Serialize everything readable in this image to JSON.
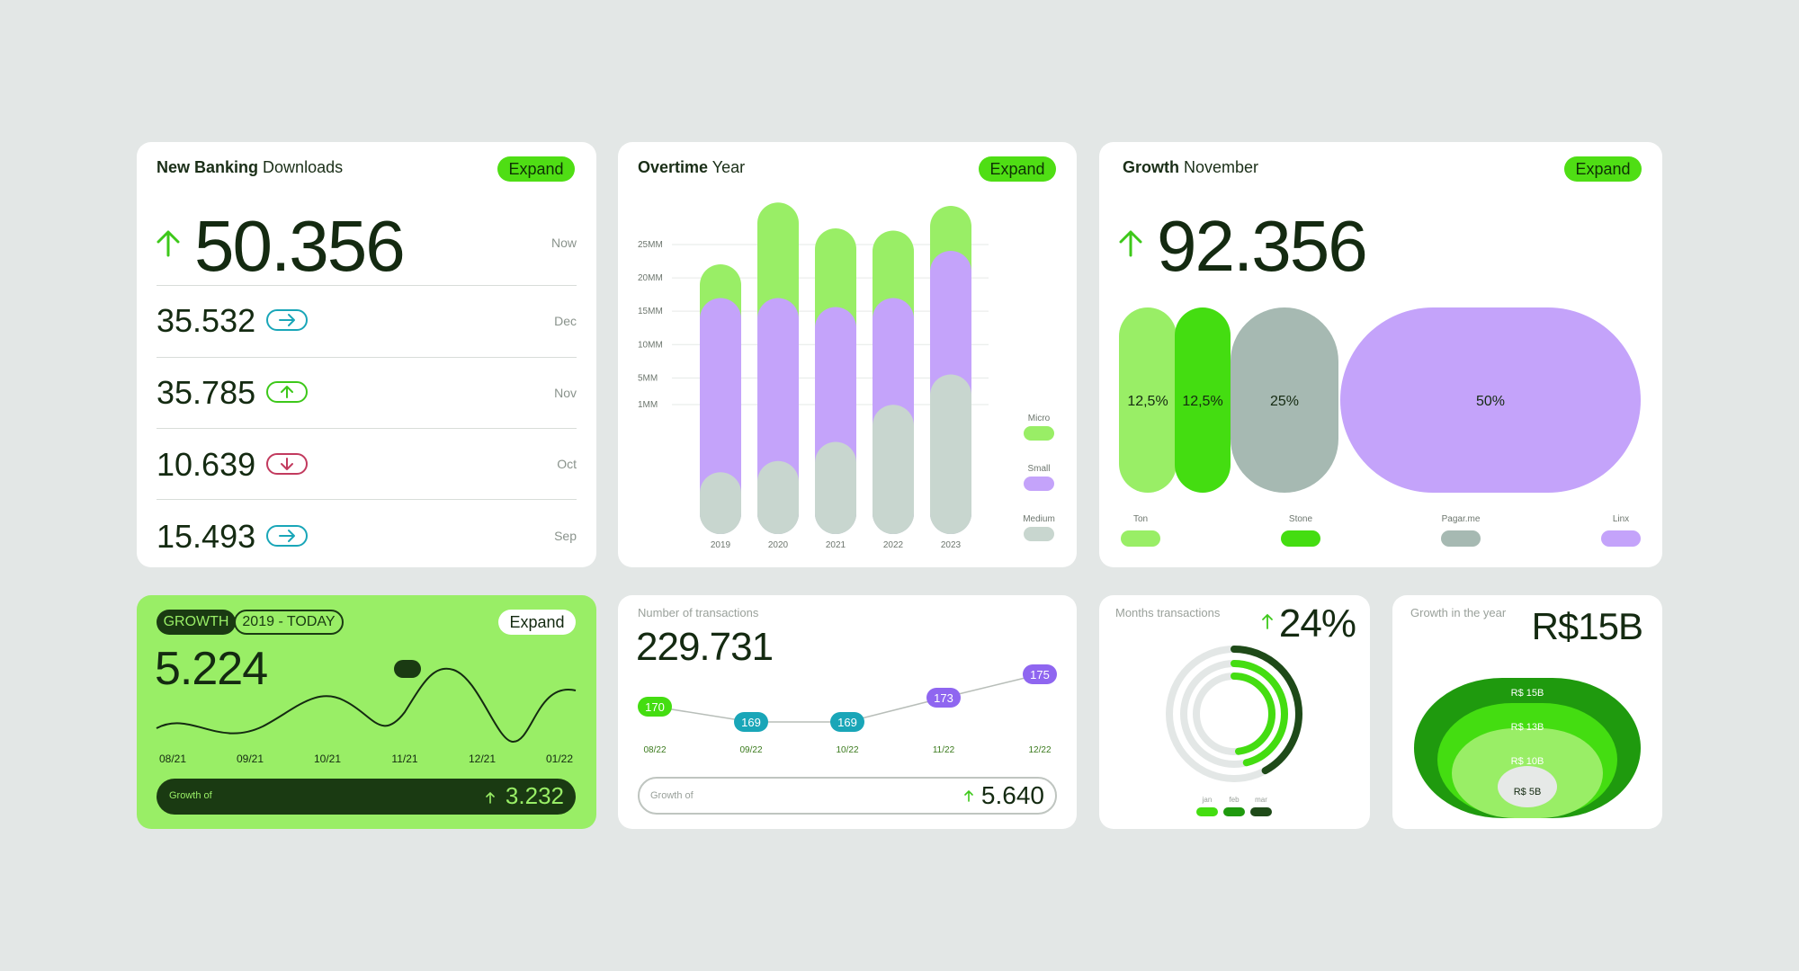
{
  "downloads": {
    "title_bold": "New Banking",
    "title_rest": "Downloads",
    "expand": "Expand",
    "main_value": "50.356",
    "main_label": "Now",
    "rows": [
      {
        "value": "35.532",
        "label": "Dec",
        "dir": "right",
        "color": "#19a6b8"
      },
      {
        "value": "35.785",
        "label": "Nov",
        "dir": "up",
        "color": "#3dc81a"
      },
      {
        "value": "10.639",
        "label": "Oct",
        "dir": "down",
        "color": "#c23a5e"
      },
      {
        "value": "15.493",
        "label": "Sep",
        "dir": "right",
        "color": "#19a6b8"
      }
    ]
  },
  "overtime": {
    "title_bold": "Overtime",
    "title_rest": "Year",
    "expand": "Expand",
    "chart_data": {
      "type": "bar",
      "stacked": true,
      "categories": [
        "2019",
        "2020",
        "2021",
        "2022",
        "2023"
      ],
      "y_ticks": [
        "25MM",
        "20MM",
        "15MM",
        "10MM",
        "5MM",
        "1MM"
      ],
      "series": [
        {
          "name": "Medium",
          "color": "#c8d6cf",
          "values": [
            5.5,
            6.5,
            8.2,
            11.5,
            14.2
          ]
        },
        {
          "name": "Small",
          "color": "#c4a3fa",
          "values": [
            15.5,
            14.5,
            12.0,
            9.5,
            11.0
          ]
        },
        {
          "name": "Micro",
          "color": "#99ee66",
          "values": [
            3.0,
            8.5,
            7.0,
            6.0,
            4.0
          ]
        }
      ]
    }
  },
  "growth_nov": {
    "title_bold": "Growth",
    "title_rest": "November",
    "expand": "Expand",
    "main_value": "92.356",
    "chart_data": {
      "type": "bar",
      "labels": [
        "Ton",
        "Stone",
        "Pagar.me",
        "Linx"
      ],
      "values_text": [
        "12,5%",
        "12,5%",
        "25%",
        "50%"
      ],
      "values": [
        12.5,
        12.5,
        25,
        50
      ],
      "colors": [
        "#99ee66",
        "#44dd11",
        "#a6b9b2",
        "#c4a3fa"
      ]
    }
  },
  "growth_card": {
    "tag1": "GROWTH",
    "tag2": "2019 - TODAY",
    "expand": "Expand",
    "value": "5.224",
    "footer_label": "Growth of",
    "footer_value": "3.232",
    "chart_data": {
      "type": "line",
      "x": [
        "08/21",
        "09/21",
        "10/21",
        "11/21",
        "12/21",
        "01/22"
      ],
      "highlight_index": 3
    }
  },
  "transactions": {
    "title": "Number of transactions",
    "value": "229.731",
    "footer_label": "Growth of",
    "footer_value": "5.640",
    "chart_data": {
      "type": "line",
      "x": [
        "08/22",
        "09/22",
        "10/22",
        "11/22",
        "12/22"
      ],
      "values": [
        170,
        169,
        169,
        173,
        175
      ],
      "colors": [
        "#44dd11",
        "#19a6b8",
        "#19a6b8",
        "#8f66f0",
        "#8f66f0"
      ]
    }
  },
  "months": {
    "title": "Months transactions",
    "value": "24%",
    "chart_data": {
      "type": "pie",
      "labels": [
        "jan",
        "feb",
        "mar"
      ],
      "colors": [
        "#44dd11",
        "#1f9a0e",
        "#1e4a18"
      ]
    }
  },
  "year": {
    "title": "Growth in the year",
    "value": "R$15B",
    "chart_data": {
      "type": "area",
      "labels": [
        "R$ 15B",
        "R$ 13B",
        "R$ 10B",
        "R$ 5B"
      ],
      "colors": [
        "#1f9a0e",
        "#44dd11",
        "#99ee66",
        "#e6e9e7"
      ]
    }
  }
}
